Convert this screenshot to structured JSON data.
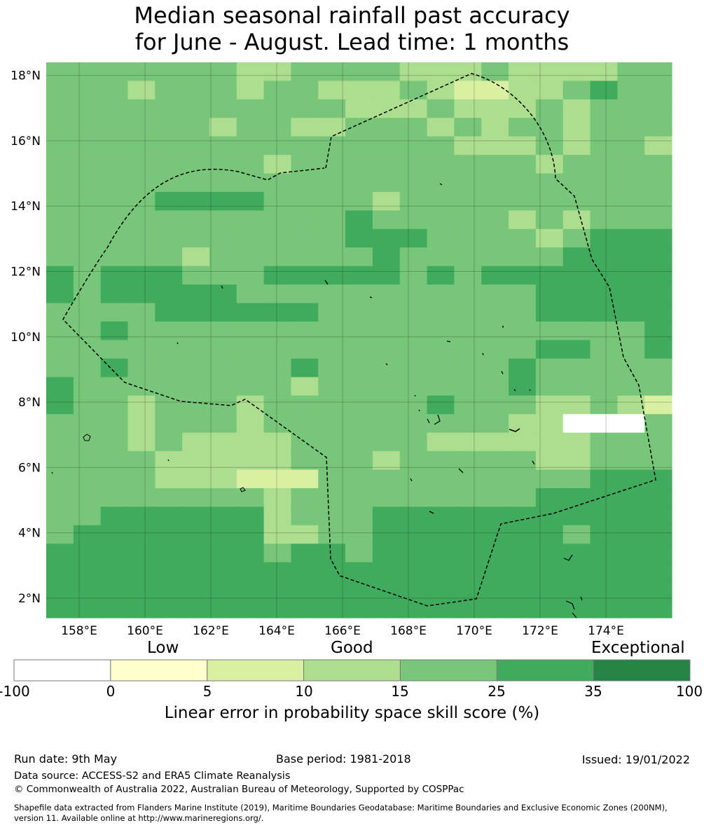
{
  "title": {
    "line1": "Median seasonal rainfall past accuracy",
    "line2": "for June - August. Lead time: 1 months"
  },
  "map": {
    "lat_range": [
      1.4,
      18.4
    ],
    "lon_range": [
      157.0,
      176.0
    ],
    "cell_size_deg": 0.83,
    "lat_labels": [
      "2°N",
      "4°N",
      "6°N",
      "8°N",
      "10°N",
      "12°N",
      "14°N",
      "16°N",
      "18°N"
    ],
    "lon_labels": [
      "158°E",
      "160°E",
      "162°E",
      "164°E",
      "166°E",
      "168°E",
      "170°E",
      "172°E",
      "174°E"
    ],
    "grid_lines": true,
    "boundary_style": "dashed black",
    "skill_class_grid_top_to_bottom": [
      "44444443344443334333344",
      "44434443443334322334544",
      "44444444444333433343444",
      "44444434433444343443444",
      "44444444444444433343443",
      "44444444344444444434444",
      "44444444444444444444444",
      "44445555444434444444444",
      "44444444444544444343444",
      "44444444444555444434555",
      "44444344444454444445555",
      "54555444555554545555555",
      "54555554444444444455555",
      "44445555554444444455555",
      "44544444444444444444445",
      "44444444444444444455445",
      "44544444454444444544444",
      "54444444434444444544444",
      "54434443444444544433432",
      "44434443444444444330004",
      "44434333344444333333444",
      "44443333344434444433444",
      "44443332224444444444555",
      "44444444344444444455555",
      "44555555344455555555555",
      "45555555334455555554555",
      "55555555455455555555555",
      "55555555555555555555555",
      "55555555555555555555555",
      "55555555555555555555555"
    ]
  },
  "colorbar": {
    "headers": [
      "Low",
      "Good",
      "Exceptional"
    ],
    "ticks": [
      "-100",
      "0",
      "5",
      "10",
      "15",
      "25",
      "35",
      "100"
    ],
    "colors": [
      "#ffffff",
      "#ffffcc",
      "#d9f0a3",
      "#addd8e",
      "#78c679",
      "#41ab5d",
      "#238443"
    ],
    "title": "Linear error in probability space skill score (%)"
  },
  "footer": {
    "run_date": "Run date: 9th May",
    "base_period": "Base period: 1981-2018",
    "issued": "Issued: 19/01/2022",
    "data_source": "Data source: ACCESS-S2 and ERA5 Climate Reanalysis",
    "copyright": "© Commonwealth of Australia 2022, Australian Bureau of Meteorology, Supported by COSPPac",
    "shapefile_line1": "Shapefile data extracted from Flanders Marine Institute (2019), Maritime Boundaries Geodatabase: Maritime Boundaries and Exclusive Economic Zones (200NM),",
    "shapefile_line2": "version 11. Available online at http://www.marineregions.org/."
  }
}
